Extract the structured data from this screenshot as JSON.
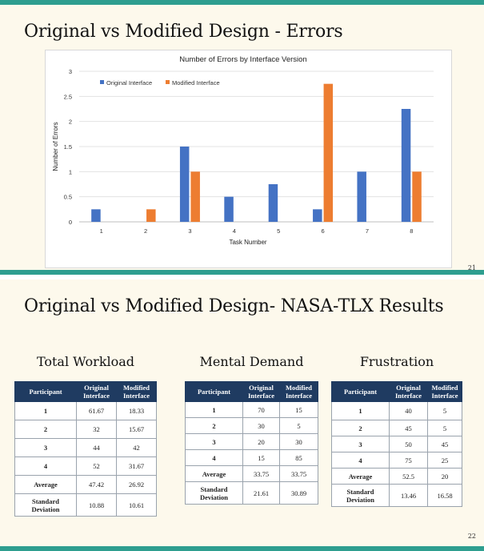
{
  "slide1": {
    "title": "Original vs Modified Design - Errors",
    "number": "21"
  },
  "chart_data": {
    "type": "bar",
    "title": "Number of Errors by Interface Version",
    "xlabel": "Task Number",
    "ylabel": "Number of Errors",
    "categories": [
      "1",
      "2",
      "3",
      "4",
      "5",
      "6",
      "7",
      "8"
    ],
    "series": [
      {
        "name": "Original Interface",
        "color": "#4472c4",
        "values": [
          0.25,
          0,
          1.5,
          0.5,
          0.75,
          0.25,
          1,
          2.25
        ]
      },
      {
        "name": "Modified Interface",
        "color": "#ed7d31",
        "values": [
          0,
          0.25,
          1,
          0,
          0,
          2.75,
          0,
          1
        ]
      }
    ],
    "ylim": [
      0,
      3
    ],
    "yticks": [
      "0",
      "0.5",
      "1",
      "1.5",
      "2",
      "2.5",
      "3"
    ],
    "grid": true,
    "legend": "top-left"
  },
  "slide2": {
    "title": "Original vs Modified Design- NASA-TLX Results",
    "number": "22",
    "tables": [
      {
        "title": "Total Workload",
        "headers": [
          "Participant",
          "Original Interface",
          "Modified Interface"
        ],
        "rows": [
          [
            "1",
            "61.67",
            "18.33"
          ],
          [
            "2",
            "32",
            "15.67"
          ],
          [
            "3",
            "44",
            "42"
          ],
          [
            "4",
            "52",
            "31.67"
          ],
          [
            "Average",
            "47.42",
            "26.92"
          ],
          [
            "Standard Deviation",
            "10.88",
            "10.61"
          ]
        ]
      },
      {
        "title": "Mental Demand",
        "headers": [
          "Participant",
          "Original Interface",
          "Modified Interface"
        ],
        "rows": [
          [
            "1",
            "70",
            "15"
          ],
          [
            "2",
            "30",
            "5"
          ],
          [
            "3",
            "20",
            "30"
          ],
          [
            "4",
            "15",
            "85"
          ],
          [
            "Average",
            "33.75",
            "33.75"
          ],
          [
            "Standard Deviation",
            "21.61",
            "30.89"
          ]
        ]
      },
      {
        "title": "Frustration",
        "headers": [
          "Participant",
          "Original Interface",
          "Modified Interface"
        ],
        "rows": [
          [
            "1",
            "40",
            "5"
          ],
          [
            "2",
            "45",
            "5"
          ],
          [
            "3",
            "50",
            "45"
          ],
          [
            "4",
            "75",
            "25"
          ],
          [
            "Average",
            "52.5",
            "20"
          ],
          [
            "Standard Deviation",
            "13.46",
            "16.58"
          ]
        ]
      }
    ]
  }
}
